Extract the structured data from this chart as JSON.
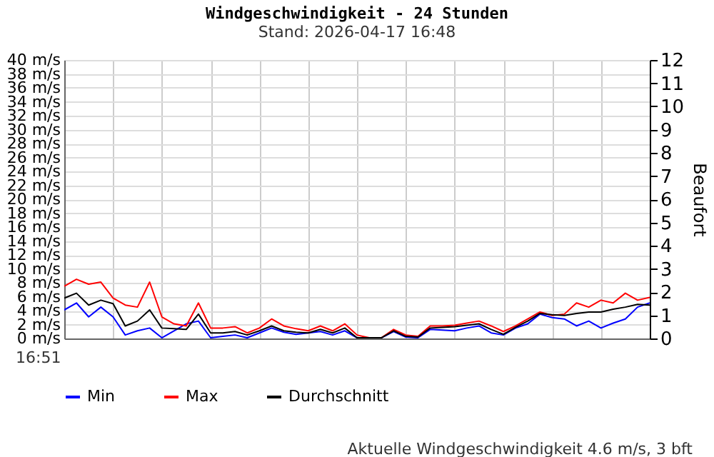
{
  "chart_data": {
    "type": "line",
    "title": "Windgeschwindigkeit - 24 Stunden",
    "subtitle": "Stand: 2026-04-17 16:48",
    "y2label": "Beaufort",
    "annotations": [
      "16:51",
      "Aktuelle Windgeschwindigkeit 4.6 m/s, 3 bft"
    ],
    "categories": [
      null,
      null,
      null,
      null,
      null,
      null,
      null,
      null,
      null,
      null,
      null,
      null,
      null,
      null,
      null,
      null,
      null,
      null,
      null,
      null,
      null,
      null,
      null,
      null,
      null,
      null,
      null,
      null,
      null,
      null,
      null,
      null,
      null,
      null,
      null,
      null,
      null,
      null,
      null,
      null,
      null,
      null,
      null,
      null,
      null,
      null,
      null,
      null,
      null
    ],
    "ylim": [
      0,
      40
    ],
    "y2lim": [
      0,
      12
    ],
    "yticks": [
      {
        "value": 0,
        "label": "0 m/s"
      },
      {
        "value": 2,
        "label": "2 m/s"
      },
      {
        "value": 4,
        "label": "4 m/s"
      },
      {
        "value": 6,
        "label": "6 m/s"
      },
      {
        "value": 8,
        "label": "8 m/s"
      },
      {
        "value": 10,
        "label": "10 m/s"
      },
      {
        "value": 12,
        "label": "12 m/s"
      },
      {
        "value": 14,
        "label": "14 m/s"
      },
      {
        "value": 16,
        "label": "16 m/s"
      },
      {
        "value": 18,
        "label": "18 m/s"
      },
      {
        "value": 20,
        "label": "20 m/s"
      },
      {
        "value": 22,
        "label": "22 m/s"
      },
      {
        "value": 24,
        "label": "24 m/s"
      },
      {
        "value": 26,
        "label": "26 m/s"
      },
      {
        "value": 28,
        "label": "28 m/s"
      },
      {
        "value": 30,
        "label": "30 m/s"
      },
      {
        "value": 32,
        "label": "32 m/s"
      },
      {
        "value": 34,
        "label": "34 m/s"
      },
      {
        "value": 36,
        "label": "36 m/s"
      },
      {
        "value": 38,
        "label": "38 m/s"
      },
      {
        "value": 40,
        "label": "40 m/s"
      }
    ],
    "y2ticks": [
      0,
      1,
      2,
      3,
      4,
      5,
      6,
      7,
      8,
      9,
      10,
      11,
      12
    ],
    "grid": true,
    "legend": "bottom",
    "line_style": "solid",
    "marker": "none",
    "series": [
      {
        "name": "Min",
        "color": "#0000ff",
        "values": [
          4.1,
          5.1,
          3.1,
          4.5,
          3.1,
          0.5,
          1.1,
          1.5,
          0.1,
          1.1,
          2.1,
          2.5,
          0.1,
          0.3,
          0.5,
          0.1,
          0.8,
          1.5,
          0.9,
          0.6,
          0.8,
          1.0,
          0.5,
          1.1,
          0.1,
          0.1,
          0.1,
          1.0,
          0.2,
          0.1,
          1.3,
          1.2,
          1.1,
          1.5,
          1.8,
          0.8,
          0.5,
          1.5,
          2.1,
          3.5,
          3.0,
          2.8,
          1.8,
          2.5,
          1.5,
          2.2,
          2.8,
          4.5,
          5.1
        ]
      },
      {
        "name": "Max",
        "color": "#ff0000",
        "values": [
          7.5,
          8.5,
          7.8,
          8.1,
          5.8,
          4.8,
          4.5,
          8.1,
          3.1,
          2.1,
          1.8,
          5.1,
          1.5,
          1.5,
          1.7,
          0.8,
          1.5,
          2.8,
          1.8,
          1.4,
          1.1,
          1.8,
          1.1,
          2.1,
          0.5,
          0.1,
          0.1,
          1.3,
          0.5,
          0.3,
          1.8,
          1.8,
          1.9,
          2.2,
          2.5,
          1.8,
          1.0,
          1.8,
          2.8,
          3.8,
          3.3,
          3.5,
          5.1,
          4.5,
          5.5,
          5.1,
          6.5,
          5.5,
          5.9
        ]
      },
      {
        "name": "Durchschnitt",
        "color": "#000000",
        "values": [
          5.8,
          6.5,
          4.8,
          5.5,
          5.0,
          1.8,
          2.5,
          4.1,
          1.5,
          1.4,
          1.3,
          3.5,
          0.8,
          0.8,
          1.0,
          0.5,
          1.1,
          1.8,
          1.1,
          0.9,
          0.8,
          1.3,
          0.8,
          1.5,
          0.1,
          0.1,
          0.1,
          1.1,
          0.3,
          0.2,
          1.5,
          1.6,
          1.7,
          1.9,
          2.1,
          1.3,
          0.6,
          1.6,
          2.5,
          3.6,
          3.4,
          3.3,
          3.6,
          3.8,
          3.8,
          4.2,
          4.5,
          4.9,
          4.8
        ]
      }
    ]
  }
}
